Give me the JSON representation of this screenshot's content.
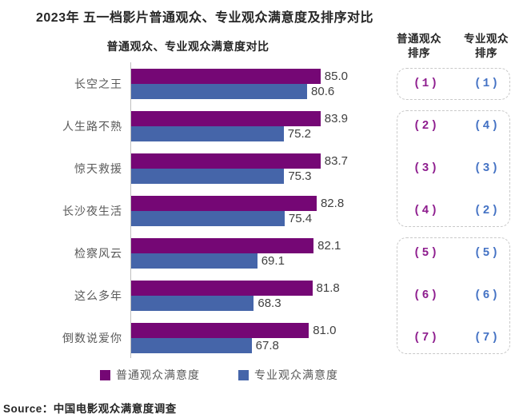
{
  "page_title": "2023年 五一档影片普通观众、专业观众满意度及排序对比",
  "source": "Source：中国电影观众满意度调查",
  "colors": {
    "ordinary_bar": "#750775",
    "professional_bar": "#4565A9",
    "ordinary_rank_text": "#8E1D8E",
    "professional_rank_text": "#4472C4",
    "value_label": "#404040",
    "category_label": "#595959",
    "axis_line": "#BFBFBF",
    "group_box_border": "#C9C9C9"
  },
  "chart_data": {
    "type": "bar",
    "orientation": "horizontal",
    "title": "普通观众、专业观众满意度对比",
    "categories": [
      "长空之王",
      "人生路不熟",
      "惊天救援",
      "长沙夜生活",
      "检察风云",
      "这么多年",
      "倒数说爱你"
    ],
    "series": [
      {
        "name": "普通观众满意度",
        "values": [
          85.0,
          83.9,
          83.7,
          82.8,
          82.1,
          81.8,
          81.0
        ]
      },
      {
        "name": "专业观众满意度",
        "values": [
          80.6,
          75.2,
          75.3,
          75.4,
          69.1,
          68.3,
          67.8
        ]
      }
    ],
    "axis_range": [
      40,
      90
    ],
    "value_label_decimals": 1,
    "grid": false,
    "legend_position": "bottom"
  },
  "ranking": {
    "columns": [
      {
        "line1": "普通观众",
        "line2": "排序"
      },
      {
        "line1": "专业观众",
        "line2": "排序"
      }
    ],
    "ordinary_ranks": [
      "(1)",
      "(2)",
      "(3)",
      "(4)",
      "(5)",
      "(6)",
      "(7)"
    ],
    "professional_ranks": [
      "(1)",
      "(4)",
      "(3)",
      "(2)",
      "(5)",
      "(6)",
      "(7)"
    ],
    "groups": [
      {
        "start_row": 0,
        "end_row": 0
      },
      {
        "start_row": 1,
        "end_row": 3
      },
      {
        "start_row": 4,
        "end_row": 6
      }
    ]
  }
}
